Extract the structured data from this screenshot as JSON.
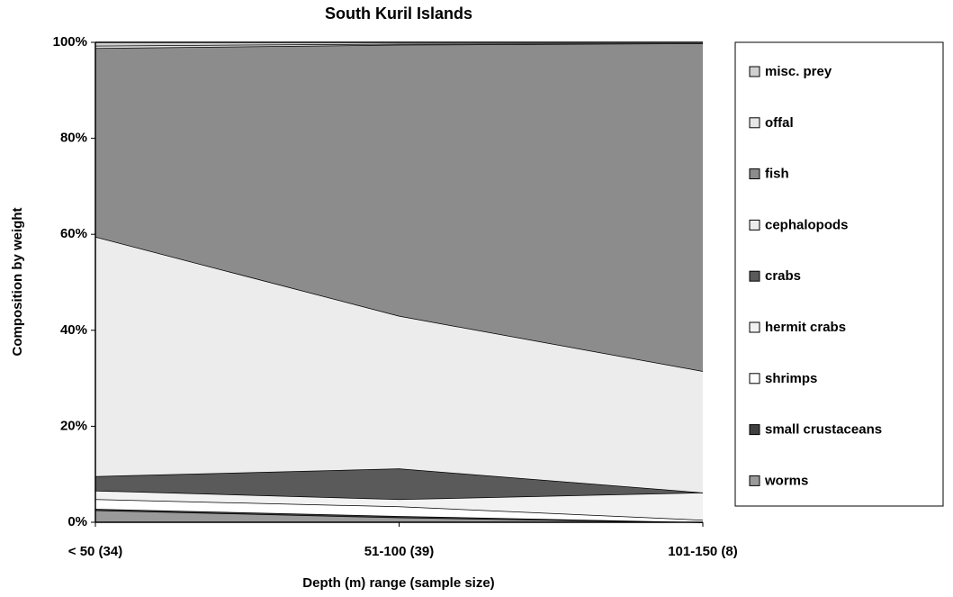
{
  "chart_data": {
    "type": "stacked_area_100",
    "title": "South Kuril Islands",
    "x_label": "Depth (m) range (sample size)",
    "y_label": "Composition by weight",
    "categories": [
      "< 50  (34)",
      "51-100  (39)",
      "101-150 (8)"
    ],
    "series": [
      {
        "name": "worms",
        "color": "#9a9a9a",
        "values": [
          2.5,
          1.0,
          0.0
        ]
      },
      {
        "name": "small crustaceans",
        "color": "#404040",
        "values": [
          0.3,
          0.3,
          0.0
        ]
      },
      {
        "name": "shrimps",
        "color": "#ffffff",
        "values": [
          2.0,
          2.0,
          0.5
        ]
      },
      {
        "name": "hermit crabs",
        "color": "#f2f2f2",
        "values": [
          1.8,
          1.5,
          5.7
        ]
      },
      {
        "name": "crabs",
        "color": "#5a5a5a",
        "values": [
          3.0,
          6.4,
          0.0
        ]
      },
      {
        "name": "cephalopods",
        "color": "#ececec",
        "values": [
          49.9,
          31.8,
          25.3
        ]
      },
      {
        "name": "fish",
        "color": "#8c8c8c",
        "values": [
          39.3,
          56.5,
          68.3
        ]
      },
      {
        "name": "offal",
        "color": "#e6e6e6",
        "values": [
          0.5,
          0.2,
          0.0
        ]
      },
      {
        "name": "misc. prey",
        "color": "#d0d0d0",
        "values": [
          0.7,
          0.3,
          0.2
        ]
      }
    ],
    "ylim": [
      0,
      100
    ],
    "yticks": [
      {
        "value": 0,
        "label": "0%"
      },
      {
        "value": 20,
        "label": "20%"
      },
      {
        "value": 40,
        "label": "40%"
      },
      {
        "value": 60,
        "label": "60%"
      },
      {
        "value": 80,
        "label": "80%"
      },
      {
        "value": 100,
        "label": "100%"
      }
    ],
    "legend": "right"
  }
}
